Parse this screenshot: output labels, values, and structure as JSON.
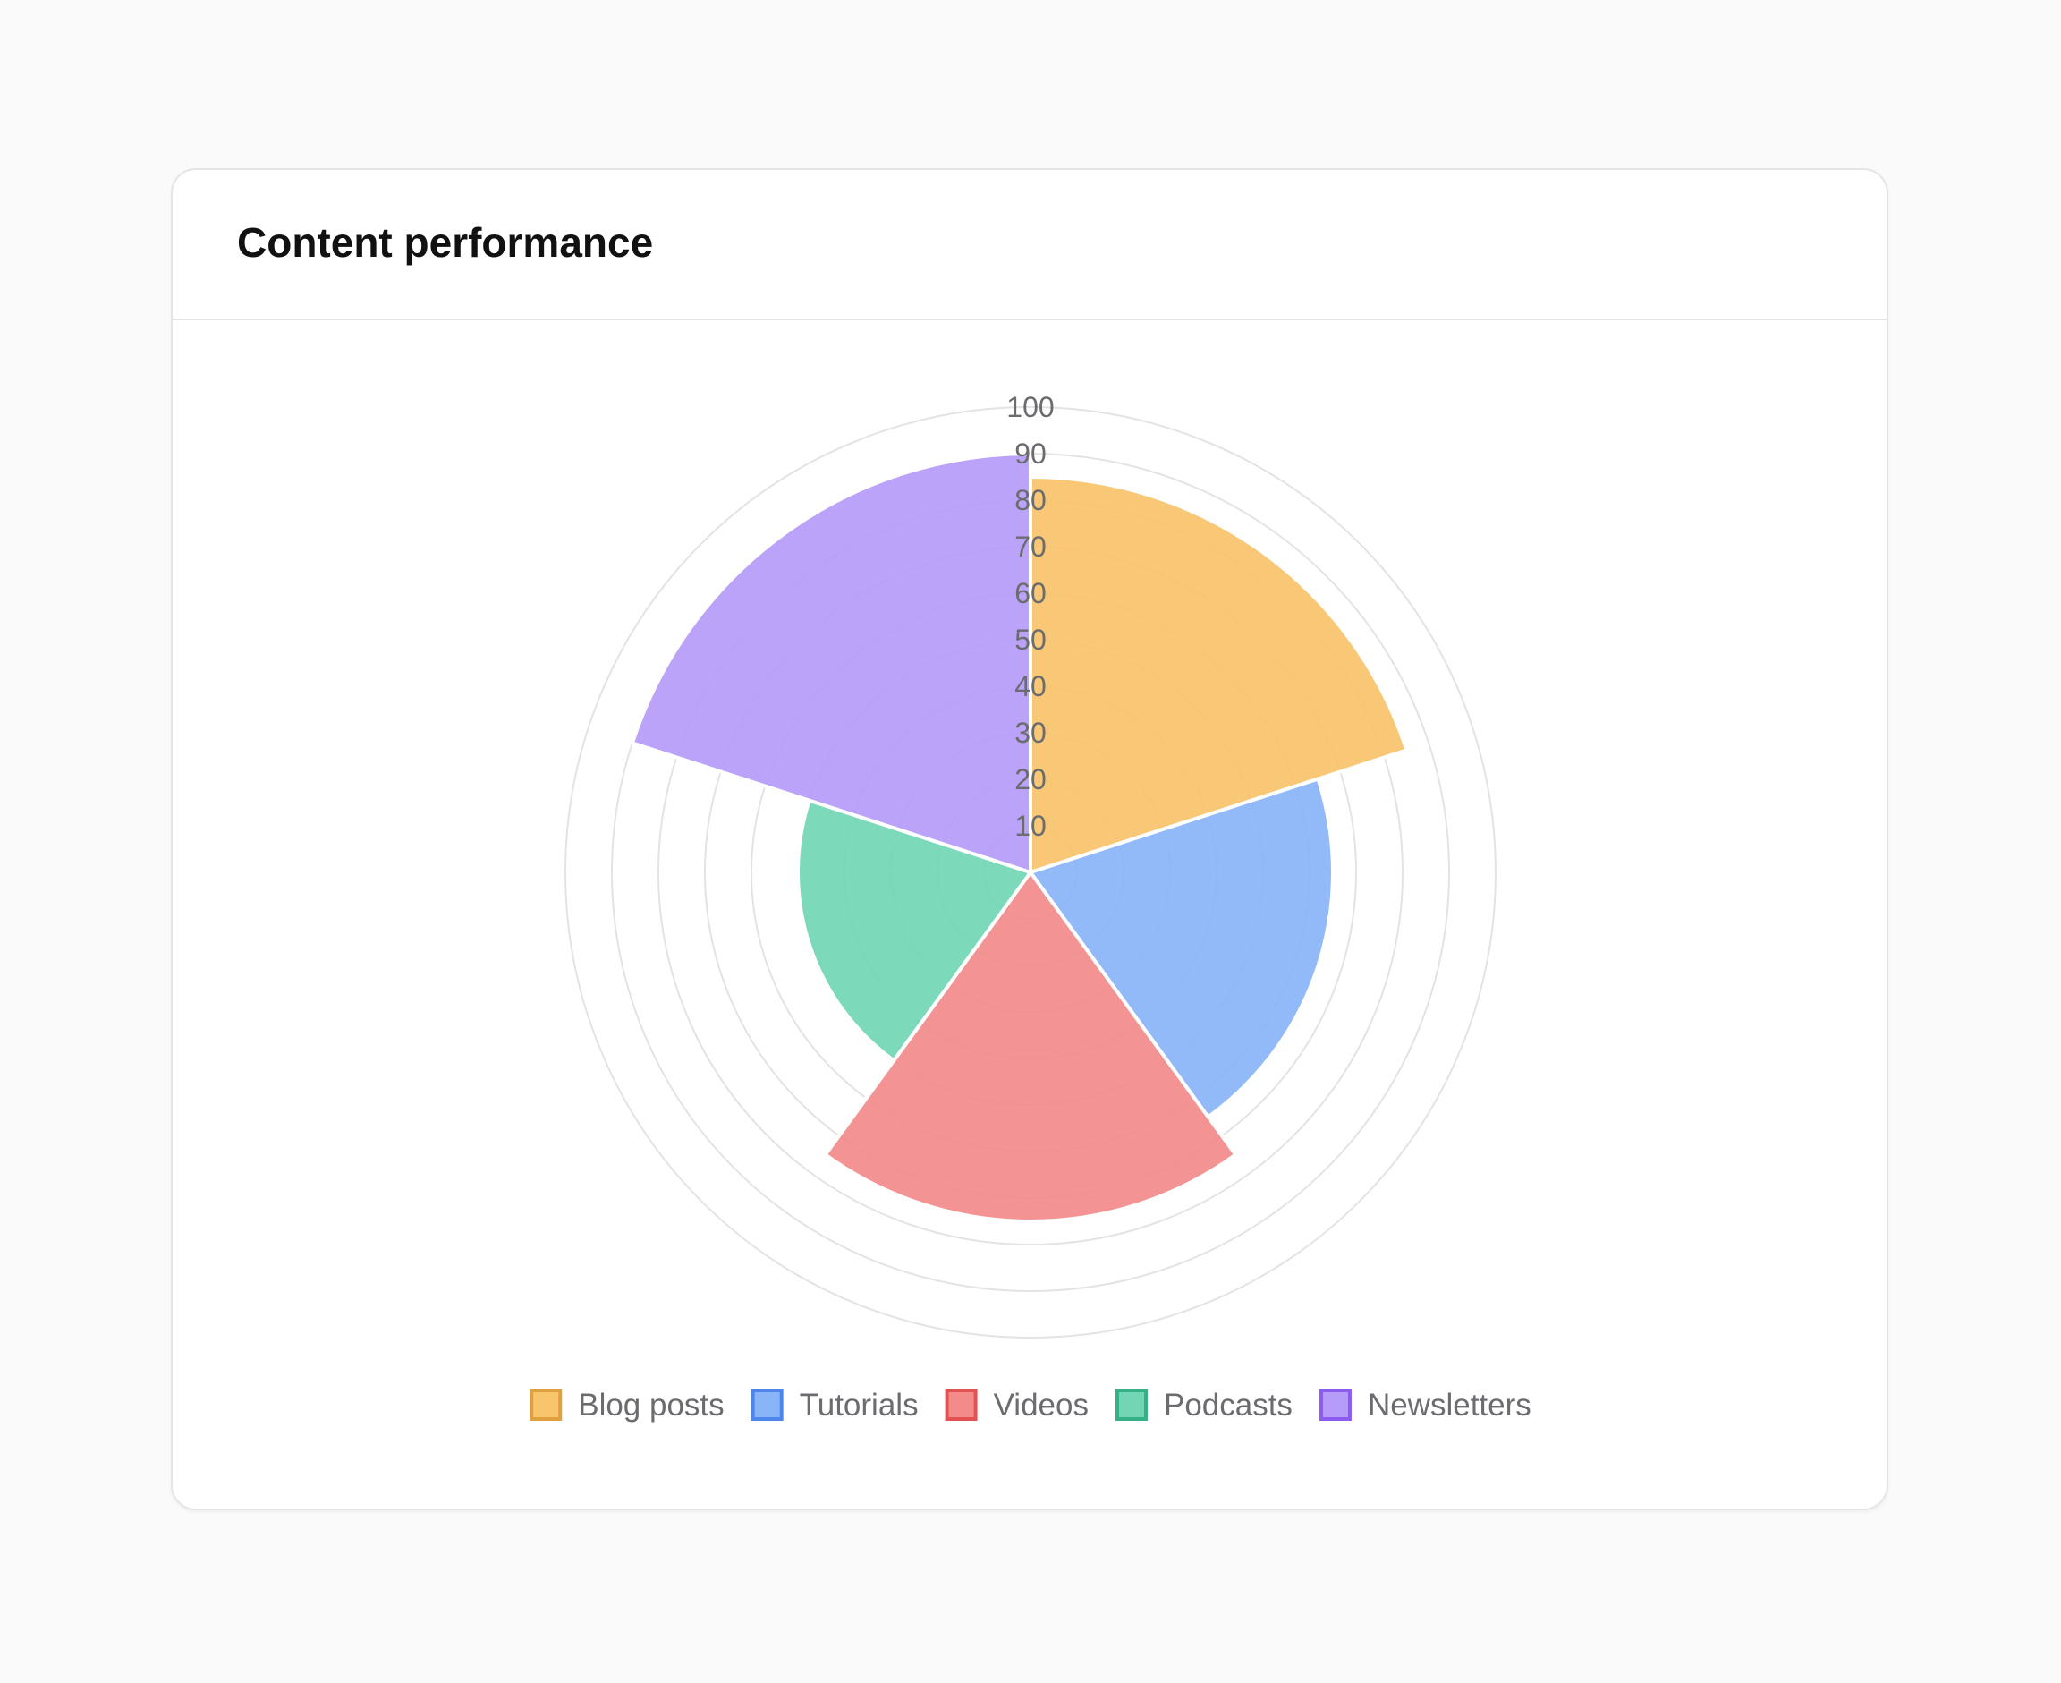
{
  "card": {
    "title": "Content performance"
  },
  "chart_data": {
    "type": "polarArea",
    "title": "Content performance",
    "categories": [
      "Blog posts",
      "Tutorials",
      "Videos",
      "Podcasts",
      "Newsletters"
    ],
    "values": [
      85,
      65,
      75,
      50,
      90
    ],
    "r_range": [
      0,
      100
    ],
    "r_ticks": [
      10,
      20,
      30,
      40,
      50,
      60,
      70,
      80,
      90,
      100
    ],
    "grid": true,
    "legend": "bottom",
    "colors": {
      "fill": [
        "#f8c46c",
        "#8ab4f8",
        "#f38b8b",
        "#72d6b4",
        "#b59cf8"
      ],
      "border": [
        "#e0a040",
        "#4f86ec",
        "#e25252",
        "#36b088",
        "#8c5cf0"
      ]
    }
  }
}
